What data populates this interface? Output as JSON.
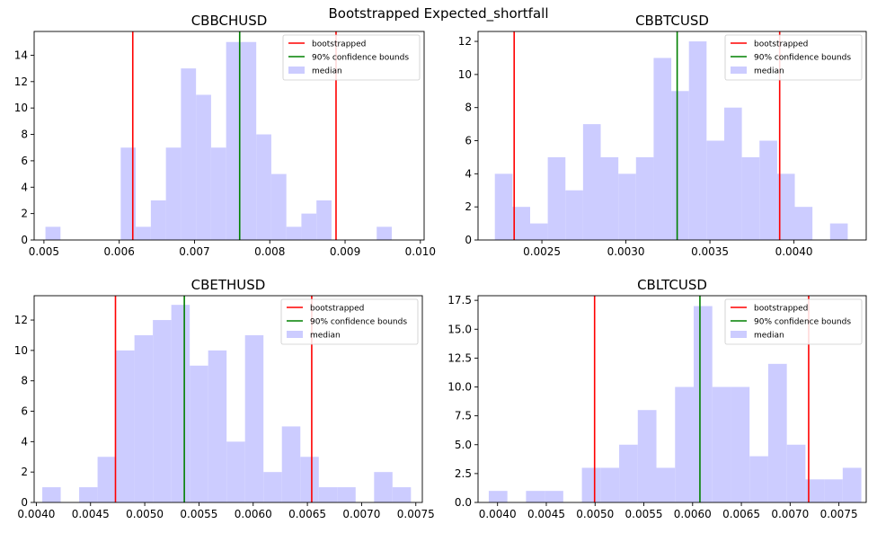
{
  "figure": {
    "suptitle": "Bootstrapped Expected_shortfall"
  },
  "colors": {
    "bootstrapped": "#ff0000",
    "confidence": "#008000",
    "median_fill": "#ccccff"
  },
  "chart_data": [
    {
      "type": "bar",
      "title": "CBBCHUSD",
      "xlabel": "",
      "ylabel": "",
      "xlim": [
        0.00487,
        0.01005
      ],
      "ylim": [
        0,
        15.8
      ],
      "xticks": [
        0.005,
        0.006,
        0.007,
        0.008,
        0.009,
        0.01
      ],
      "xtick_labels": [
        "0.005",
        "0.006",
        "0.007",
        "0.008",
        "0.009",
        "0.010"
      ],
      "yticks": [
        0,
        2,
        4,
        6,
        8,
        10,
        12,
        14
      ],
      "yticks_labels": [
        "0",
        "2",
        "4",
        "6",
        "8",
        "10",
        "12",
        "14"
      ],
      "bins": [
        0.00502,
        0.00522,
        0.00542,
        0.00562,
        0.00582,
        0.00602,
        0.00622,
        0.00642,
        0.00662,
        0.00682,
        0.00702,
        0.00722,
        0.00742,
        0.00762,
        0.00782,
        0.00802,
        0.00822,
        0.00842,
        0.00862,
        0.00882,
        0.00902,
        0.00922,
        0.00942,
        0.00962,
        0.00982
      ],
      "counts": [
        1,
        0,
        0,
        0,
        0,
        7,
        1,
        3,
        7,
        13,
        11,
        7,
        15,
        15,
        8,
        5,
        1,
        2,
        3,
        0,
        0,
        0,
        1,
        0
      ],
      "bootstrapped_lines": [
        0.00618,
        0.00888
      ],
      "confidence_line": 0.0076,
      "legend": {
        "placement": "top-right",
        "entries": [
          "bootstrapped",
          "90% confidence bounds",
          "median"
        ]
      }
    },
    {
      "type": "bar",
      "title": "CBBTCUSD",
      "xlabel": "",
      "ylabel": "",
      "xlim": [
        0.00212,
        0.00443
      ],
      "ylim": [
        0,
        12.6
      ],
      "xticks": [
        0.0025,
        0.003,
        0.0035,
        0.004
      ],
      "xtick_labels": [
        "0.0025",
        "0.0030",
        "0.0035",
        "0.0040"
      ],
      "yticks": [
        0,
        2,
        4,
        6,
        8,
        10,
        12
      ],
      "yticks_labels": [
        "0",
        "2",
        "4",
        "6",
        "8",
        "10",
        "12"
      ],
      "bins": [
        0.00222,
        0.002325,
        0.00243,
        0.002535,
        0.00264,
        0.002745,
        0.00285,
        0.002955,
        0.00306,
        0.003165,
        0.00327,
        0.003375,
        0.00348,
        0.003585,
        0.00369,
        0.003795,
        0.0039,
        0.004005,
        0.00411,
        0.004215,
        0.00432
      ],
      "counts": [
        4,
        2,
        1,
        5,
        3,
        7,
        5,
        4,
        5,
        11,
        9,
        12,
        6,
        8,
        5,
        6,
        4,
        2,
        0,
        1
      ],
      "bootstrapped_lines": [
        0.002335,
        0.003915
      ],
      "confidence_line": 0.003305,
      "legend": {
        "placement": "top-right",
        "entries": [
          "bootstrapped",
          "90% confidence bounds",
          "median"
        ]
      }
    },
    {
      "type": "bar",
      "title": "CBETHUSD",
      "xlabel": "",
      "ylabel": "",
      "xlim": [
        0.00398,
        0.00756
      ],
      "ylim": [
        0,
        13.6
      ],
      "xticks": [
        0.004,
        0.0045,
        0.005,
        0.0055,
        0.006,
        0.0065,
        0.007,
        0.0075
      ],
      "xtick_labels": [
        "0.0040",
        "0.0045",
        "0.0050",
        "0.0055",
        "0.0060",
        "0.0065",
        "0.0070",
        "0.0075"
      ],
      "yticks": [
        0,
        2,
        4,
        6,
        8,
        10,
        12
      ],
      "yticks_labels": [
        "0",
        "2",
        "4",
        "6",
        "8",
        "10",
        "12"
      ],
      "bins": [
        0.004055,
        0.004225,
        0.004395,
        0.004565,
        0.004735,
        0.004905,
        0.005075,
        0.005245,
        0.005415,
        0.005585,
        0.005755,
        0.005925,
        0.006095,
        0.006265,
        0.006435,
        0.006605,
        0.006775,
        0.006945,
        0.007115,
        0.007285,
        0.007455
      ],
      "counts": [
        1,
        0,
        1,
        3,
        10,
        11,
        12,
        13,
        9,
        10,
        4,
        11,
        2,
        5,
        3,
        1,
        1,
        0,
        2,
        1
      ],
      "bootstrapped_lines": [
        0.00473,
        0.00654
      ],
      "confidence_line": 0.005365,
      "legend": {
        "placement": "top-right",
        "entries": [
          "bootstrapped",
          "90% confidence bounds",
          "median"
        ]
      }
    },
    {
      "type": "bar",
      "title": "CBLTCUSD",
      "xlabel": "",
      "ylabel": "",
      "xlim": [
        0.0038,
        0.00778
      ],
      "ylim": [
        0,
        17.9
      ],
      "xticks": [
        0.004,
        0.0045,
        0.005,
        0.0055,
        0.006,
        0.0065,
        0.007,
        0.0075
      ],
      "xtick_labels": [
        "0.0040",
        "0.0045",
        "0.0050",
        "0.0055",
        "0.0060",
        "0.0065",
        "0.0070",
        "0.0075"
      ],
      "yticks": [
        0,
        2.5,
        5,
        7.5,
        10,
        12.5,
        15,
        17.5
      ],
      "yticks_labels": [
        "0.0",
        "2.5",
        "5.0",
        "7.5",
        "10.0",
        "12.5",
        "15.0",
        "17.5"
      ],
      "bins": [
        0.00391,
        0.004101,
        0.004292,
        0.004483,
        0.004674,
        0.004865,
        0.005056,
        0.005247,
        0.005438,
        0.005629,
        0.00582,
        0.006011,
        0.006202,
        0.006393,
        0.006584,
        0.006775,
        0.006966,
        0.007157,
        0.007348,
        0.007539,
        0.00773
      ],
      "counts": [
        1,
        0,
        1,
        1,
        0,
        3,
        3,
        5,
        8,
        3,
        10,
        17,
        10,
        10,
        4,
        12,
        5,
        2,
        2,
        3
      ],
      "bootstrapped_lines": [
        0.004995,
        0.00719
      ],
      "confidence_line": 0.006075,
      "legend": {
        "placement": "top-right",
        "entries": [
          "bootstrapped",
          "90% confidence bounds",
          "median"
        ]
      }
    }
  ]
}
